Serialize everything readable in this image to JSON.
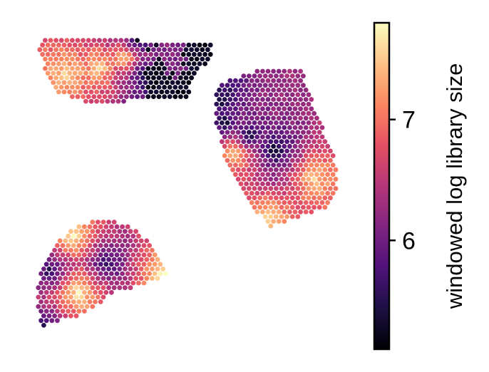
{
  "chart_data": {
    "type": "scatter",
    "description_kind": "spatial spot map colored by value",
    "colormap": "magma",
    "colorbar": {
      "label": "windowed log library size",
      "vmin": 5.1,
      "vmax": 7.8,
      "ticks": [
        6,
        7
      ],
      "tick_labels": [
        "6",
        "7"
      ],
      "placement": "right"
    },
    "axes_visible": false,
    "grid": false,
    "regions": [
      {
        "x_range": [
          0.0,
          0.36
        ],
        "y_range": [
          0.0,
          0.15
        ],
        "value_min": 5.1,
        "value_max": 7.6
      },
      {
        "x_range": [
          0.35,
          0.62
        ],
        "y_range": [
          0.13,
          0.55
        ],
        "value_min": 5.3,
        "value_max": 7.6
      },
      {
        "x_range": [
          0.0,
          0.27
        ],
        "y_range": [
          0.52,
          0.95
        ],
        "value_min": 5.5,
        "value_max": 7.8
      }
    ]
  }
}
